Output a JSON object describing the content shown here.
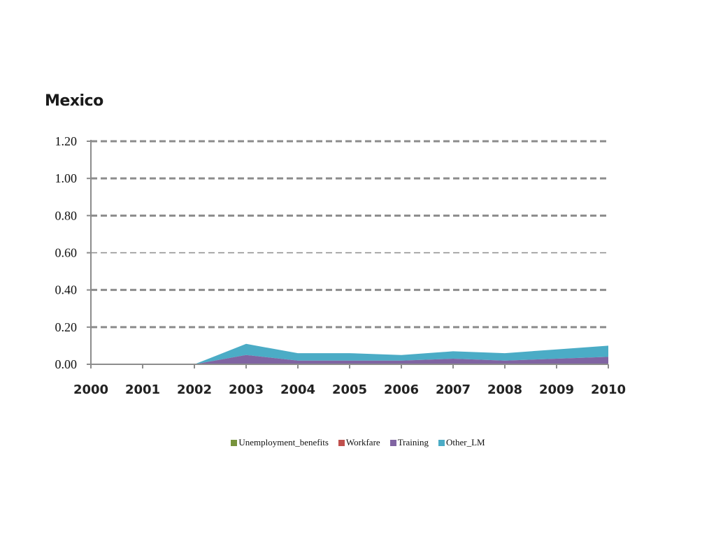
{
  "chart_data": {
    "type": "area",
    "title": "Mexico",
    "xlabel": "",
    "ylabel": "",
    "categories": [
      "2000",
      "2001",
      "2002",
      "2003",
      "2004",
      "2005",
      "2006",
      "2007",
      "2008",
      "2009",
      "2010"
    ],
    "ylim": [
      0,
      1.2
    ],
    "yticks": [
      "0.00",
      "0.20",
      "0.40",
      "0.60",
      "0.80",
      "1.00",
      "1.20"
    ],
    "stacked": true,
    "grid": true,
    "legend_position": "bottom",
    "series": [
      {
        "name": "Unemployment_benefits",
        "color": "#77933c",
        "values": [
          0,
          0,
          0,
          0,
          0,
          0,
          0,
          0,
          0,
          0,
          0
        ]
      },
      {
        "name": "Workfare",
        "color": "#c0504d",
        "values": [
          0,
          0,
          0,
          0,
          0,
          0,
          0,
          0,
          0,
          0,
          0
        ]
      },
      {
        "name": "Training",
        "color": "#8064a2",
        "values": [
          0,
          0,
          0,
          0.05,
          0.02,
          0.02,
          0.02,
          0.03,
          0.02,
          0.03,
          0.04
        ]
      },
      {
        "name": "Other_LM",
        "color": "#4bacc6",
        "values": [
          0,
          0,
          0,
          0.06,
          0.04,
          0.04,
          0.03,
          0.04,
          0.04,
          0.05,
          0.06
        ]
      }
    ]
  }
}
